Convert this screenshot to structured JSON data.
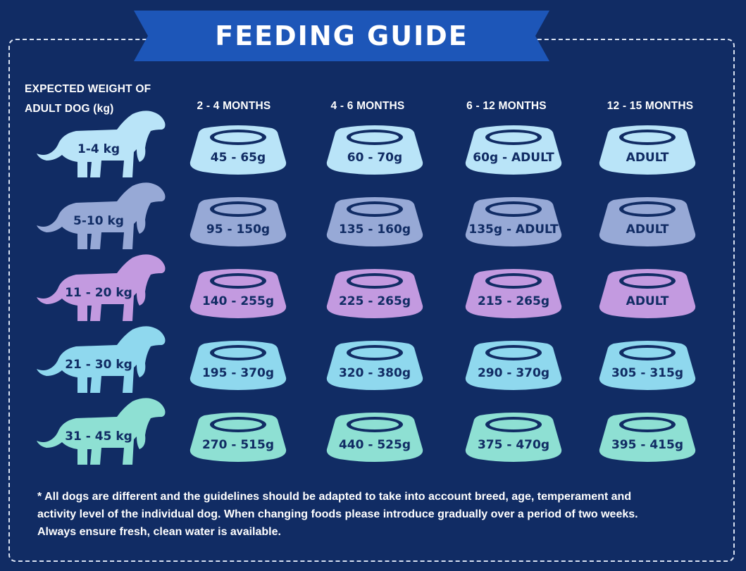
{
  "title": "FEEDING GUIDE",
  "weight_header": [
    "EXPECTED WEIGHT OF",
    "ADULT DOG (kg)"
  ],
  "age_columns": [
    "2 - 4 MONTHS",
    "4 - 6 MONTHS",
    "6 - 12 MONTHS",
    "12 - 15 MONTHS"
  ],
  "rows": [
    {
      "weight": "1-4 kg",
      "color": "#b9e4f8",
      "amounts": [
        "45 - 65g",
        "60 - 70g",
        "60g - ADULT",
        "ADULT"
      ]
    },
    {
      "weight": "5-10 kg",
      "color": "#97a9d6",
      "amounts": [
        "95 - 150g",
        "135 - 160g",
        "135g - ADULT",
        "ADULT"
      ]
    },
    {
      "weight": "11 - 20 kg",
      "color": "#c39ae0",
      "amounts": [
        "140 - 255g",
        "225 - 265g",
        "215 - 265g",
        "ADULT"
      ]
    },
    {
      "weight": "21 - 30 kg",
      "color": "#8fd8ee",
      "amounts": [
        "195 - 370g",
        "320 - 380g",
        "290 - 370g",
        "305 - 315g"
      ]
    },
    {
      "weight": "31 - 45 kg",
      "color": "#8ee0d3",
      "amounts": [
        "270 - 515g",
        "440 - 525g",
        "375 - 470g",
        "395 - 415g"
      ]
    }
  ],
  "note": [
    "* All dogs are different and the guidelines should be adapted to take into account breed, age, temperament and",
    "activity level of the individual dog. When changing foods please introduce gradually over a period of two weeks.",
    "Always ensure fresh, clean water is available."
  ],
  "colors": {
    "background": "#112c64",
    "banner": "#1d56b8",
    "text_dark": "#112c64"
  }
}
